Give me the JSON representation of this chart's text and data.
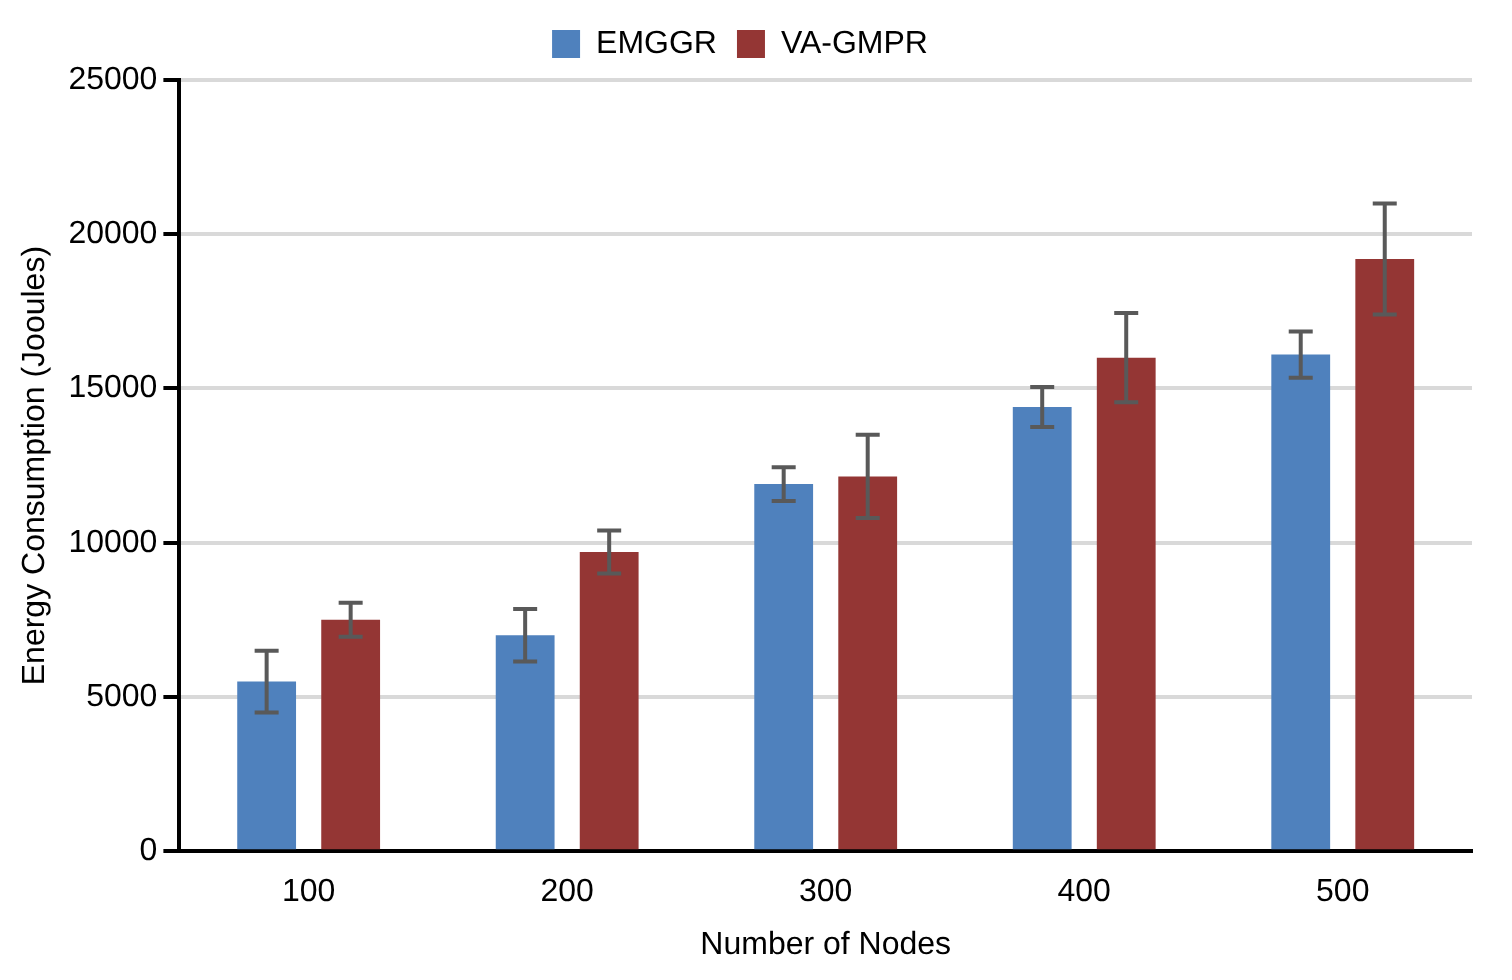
{
  "chart_data": {
    "type": "bar",
    "xlabel": "Number of Nodes",
    "ylabel": "Energy Consumption (Jooules)",
    "categories": [
      "100",
      "200",
      "300",
      "400",
      "500"
    ],
    "series": [
      {
        "name": "EMGGR",
        "color": "#4f81bd",
        "values": [
          5500,
          7000,
          11900,
          14400,
          16100
        ],
        "errors": [
          1000,
          850,
          550,
          650,
          750
        ]
      },
      {
        "name": "VA-GMPR",
        "color": "#943634",
        "values": [
          7500,
          9700,
          12150,
          16000,
          19200
        ],
        "errors": [
          550,
          700,
          1350,
          1450,
          1800
        ]
      }
    ],
    "ylim": [
      0,
      25000
    ],
    "yticks": [
      0,
      5000,
      10000,
      15000,
      20000,
      25000
    ],
    "grid": "y",
    "legend": "top"
  }
}
